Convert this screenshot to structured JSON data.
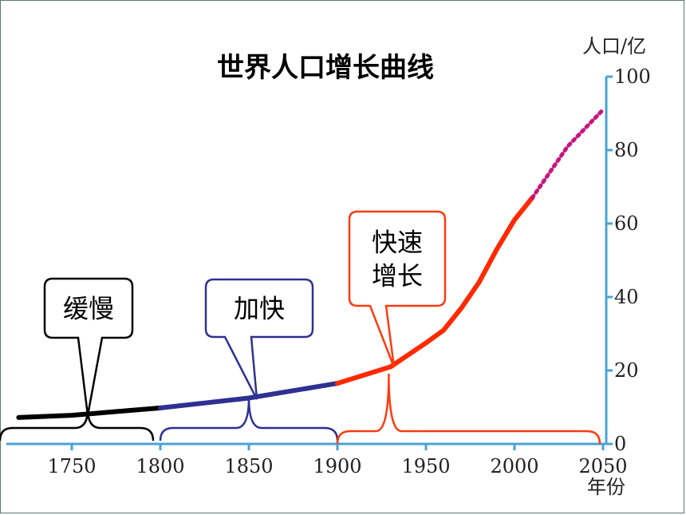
{
  "chart_data": {
    "type": "line",
    "title": "世界人口增长曲线",
    "ylabel": "人口/亿",
    "xlabel": "年份",
    "xlim": [
      1730,
      2050
    ],
    "ylim": [
      0,
      100
    ],
    "x_ticks": [
      1750,
      1800,
      1850,
      1900,
      1950,
      2000,
      2050
    ],
    "y_ticks": [
      0,
      20,
      40,
      60,
      80,
      100
    ],
    "colors": {
      "axis": "#4aa3d4",
      "curve": "#c8157e",
      "slow": "#000000",
      "faster": "#2e3192",
      "rapid": "#ff2a00",
      "callout_slow": "#000000",
      "callout_faster": "#2e3192",
      "callout_rapid": "#ff3a10"
    },
    "series": [
      {
        "x": [
          1720,
          1750,
          1800,
          1850,
          1900,
          1930,
          1950,
          1960,
          1970,
          1980,
          1990,
          2000,
          2010
        ],
        "y": [
          7.2,
          7.8,
          9.8,
          12.5,
          16.5,
          21,
          27.5,
          31,
          37,
          44,
          53,
          61,
          67
        ]
      },
      {
        "x": [
          2010,
          2020,
          2030,
          2040,
          2050
        ],
        "y": [
          67,
          74,
          81,
          86,
          91
        ],
        "style": "dotted"
      }
    ],
    "stages": [
      {
        "label": "缓慢",
        "x": [
          1720,
          1800
        ]
      },
      {
        "label": "加快",
        "x": [
          1800,
          1900
        ]
      },
      {
        "label": "快速增长",
        "x": [
          1900,
          2010
        ]
      }
    ]
  }
}
